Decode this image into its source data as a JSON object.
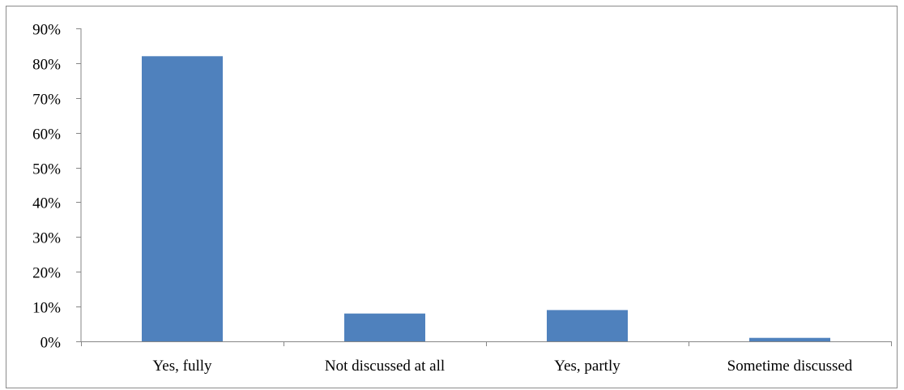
{
  "chart_data": {
    "type": "bar",
    "categories": [
      "Yes, fully",
      "Not discussed at all",
      "Yes, partly",
      "Sometime discussed"
    ],
    "values": [
      82,
      8,
      9,
      1
    ],
    "value_unit": "%",
    "ylim": [
      0,
      90
    ],
    "yticks": [
      0,
      10,
      20,
      30,
      40,
      50,
      60,
      70,
      80,
      90
    ],
    "ytick_labels": [
      "0%",
      "10%",
      "20%",
      "30%",
      "40%",
      "50%",
      "60%",
      "70%",
      "80%",
      "90%"
    ],
    "grid": false,
    "legend": "none",
    "bar_color": "#4f81bd",
    "axis_color": "#868686"
  }
}
